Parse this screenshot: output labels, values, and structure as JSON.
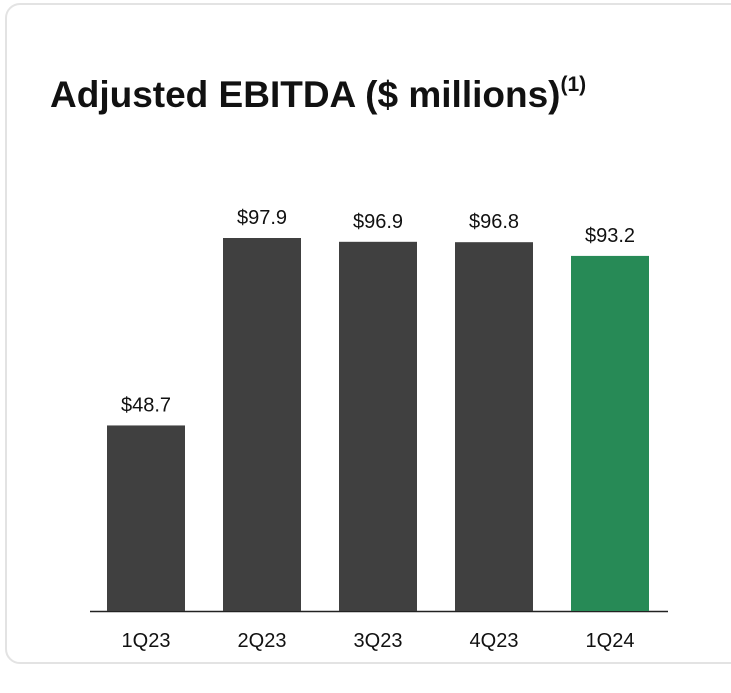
{
  "chart_data": {
    "type": "bar",
    "title": "Adjusted EBITDA ($ millions)",
    "title_note": "(1)",
    "categories": [
      "1Q23",
      "2Q23",
      "3Q23",
      "4Q23",
      "1Q24"
    ],
    "values": [
      48.7,
      97.9,
      96.9,
      96.8,
      93.2
    ],
    "value_labels": [
      "$48.7",
      "$97.9",
      "$96.9",
      "$96.8",
      "$93.2"
    ],
    "colors": [
      "#404040",
      "#404040",
      "#404040",
      "#404040",
      "#278a56"
    ],
    "ylim": [
      0,
      100
    ]
  }
}
